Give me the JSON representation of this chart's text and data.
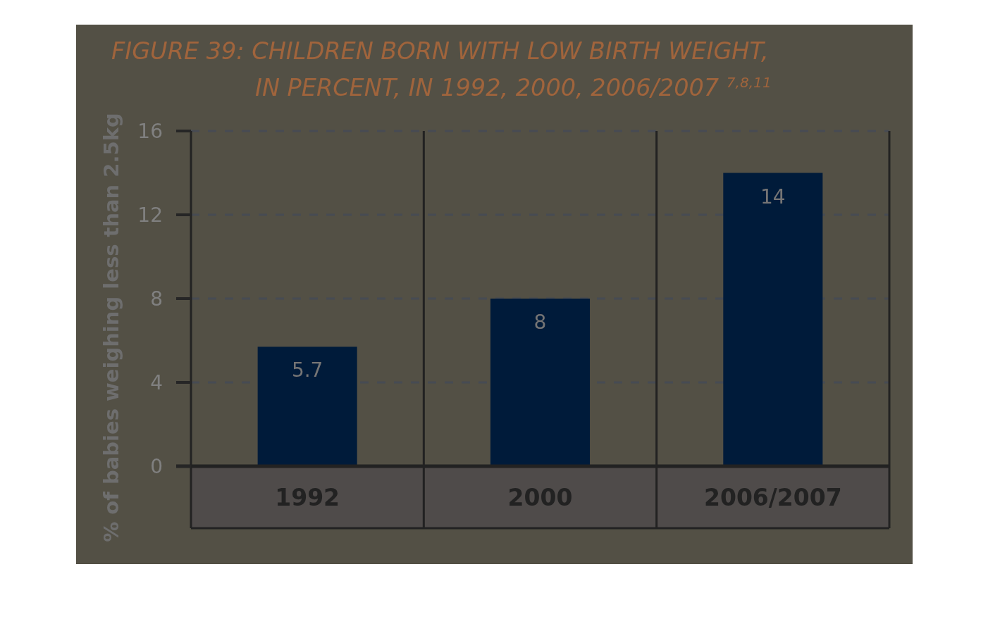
{
  "chart_data": {
    "type": "bar",
    "title": "FIGURE 39: CHILDREN BORN WITH LOW BIRTH WEIGHT,\nIN PERCENT, IN 1992, 2000, 2006/2007 $^{7,8,11}$",
    "ylabel": "% of babies weighing less than 2.5kg",
    "categories": [
      "1992",
      "2000",
      "2006/2007"
    ],
    "values": [
      5.7,
      8,
      14
    ],
    "color": "#001b3a",
    "ylim": [
      0,
      16
    ],
    "yticks": [
      0,
      4,
      8,
      12,
      16
    ],
    "grid": "y",
    "data_labels": true
  }
}
